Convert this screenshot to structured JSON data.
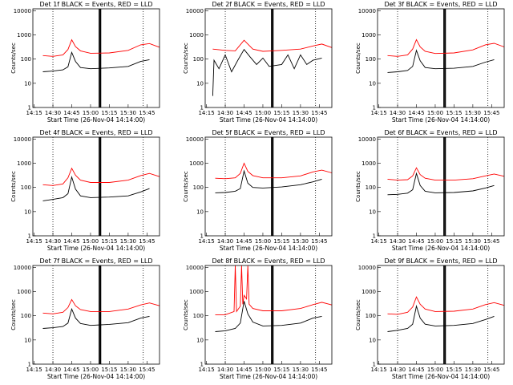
{
  "figure": {
    "xlabel": "Start Time (26-Nov-04 14:14:00)",
    "ylabel": "Counts/sec",
    "xticks": [
      "14:15",
      "14:30",
      "14:45",
      "15:00",
      "15:15",
      "15:30",
      "15:45"
    ],
    "yticks": [
      "1",
      "10",
      "100",
      "1000",
      "10000"
    ],
    "colors": {
      "events": "#000000",
      "lld": "#ff0000"
    }
  },
  "chart_data": [
    {
      "type": "line",
      "title": "Det 1f BLACK = Events, RED = LLD",
      "xlabel": "Start Time (26-Nov-04 14:14:00)",
      "ylabel": "Counts/sec",
      "ylog": true,
      "xlim": [
        "14:14",
        "15:55"
      ],
      "ylim": [
        1,
        12000
      ],
      "markers": [
        "14:30",
        "15:07",
        "15:08",
        "15:42"
      ],
      "series": [
        {
          "name": "Events",
          "color": "#000000",
          "x": [
            "14:22",
            "14:30",
            "14:38",
            "14:42",
            "14:45",
            "14:48",
            "14:52",
            "15:00",
            "15:15",
            "15:30",
            "15:40",
            "15:47"
          ],
          "values": [
            30,
            32,
            36,
            48,
            190,
            80,
            45,
            40,
            43,
            50,
            80,
            95
          ]
        },
        {
          "name": "LLD",
          "color": "#ff0000",
          "x": [
            "14:22",
            "14:30",
            "14:38",
            "14:42",
            "14:45",
            "14:48",
            "14:52",
            "15:00",
            "15:15",
            "15:30",
            "15:40",
            "15:47",
            "15:55"
          ],
          "values": [
            140,
            130,
            150,
            250,
            630,
            330,
            220,
            175,
            180,
            230,
            390,
            440,
            310
          ]
        }
      ]
    },
    {
      "type": "line",
      "title": "Det 2f BLACK = Events, RED = LLD",
      "xlabel": "Start Time (26-Nov-04 14:14:00)",
      "ylabel": "Counts/sec",
      "ylog": true,
      "xlim": [
        "14:14",
        "15:55"
      ],
      "ylim": [
        1,
        12000
      ],
      "markers": [
        "14:30",
        "15:07",
        "15:08",
        "15:42"
      ],
      "series": [
        {
          "name": "Events",
          "color": "#000000",
          "x": [
            "14:20",
            "14:21",
            "14:25",
            "14:30",
            "14:35",
            "14:40",
            "14:45",
            "14:50",
            "14:55",
            "15:00",
            "15:05",
            "15:15",
            "15:20",
            "15:25",
            "15:30",
            "15:35",
            "15:40",
            "15:47"
          ],
          "values": [
            3,
            90,
            40,
            150,
            30,
            90,
            250,
            120,
            60,
            110,
            50,
            60,
            150,
            40,
            150,
            60,
            90,
            110
          ]
        },
        {
          "name": "LLD",
          "color": "#ff0000",
          "x": [
            "14:20",
            "14:30",
            "14:38",
            "14:45",
            "14:52",
            "15:00",
            "15:15",
            "15:30",
            "15:40",
            "15:47",
            "15:55"
          ],
          "values": [
            260,
            230,
            220,
            600,
            260,
            210,
            230,
            260,
            350,
            420,
            300
          ]
        }
      ]
    },
    {
      "type": "line",
      "title": "Det 3f BLACK = Events, RED = LLD",
      "xlabel": "Start Time (26-Nov-04 14:14:00)",
      "ylabel": "Counts/sec",
      "ylog": true,
      "xlim": [
        "14:14",
        "15:55"
      ],
      "ylim": [
        1,
        12000
      ],
      "markers": [
        "14:30",
        "15:07",
        "15:08",
        "15:42"
      ],
      "series": [
        {
          "name": "Events",
          "color": "#000000",
          "x": [
            "14:22",
            "14:30",
            "14:38",
            "14:42",
            "14:45",
            "14:48",
            "14:52",
            "15:00",
            "15:15",
            "15:30",
            "15:40",
            "15:47"
          ],
          "values": [
            28,
            30,
            34,
            50,
            230,
            85,
            45,
            40,
            42,
            50,
            75,
            95
          ]
        },
        {
          "name": "LLD",
          "color": "#ff0000",
          "x": [
            "14:22",
            "14:30",
            "14:38",
            "14:42",
            "14:45",
            "14:48",
            "14:52",
            "15:00",
            "15:15",
            "15:30",
            "15:40",
            "15:47",
            "15:55"
          ],
          "values": [
            140,
            130,
            150,
            260,
            640,
            320,
            210,
            170,
            180,
            240,
            390,
            450,
            320
          ]
        }
      ]
    },
    {
      "type": "line",
      "title": "Det 4f BLACK = Events, RED = LLD",
      "xlabel": "Start Time (26-Nov-04 14:14:00)",
      "ylabel": "Counts/sec",
      "ylog": true,
      "xlim": [
        "14:14",
        "15:55"
      ],
      "ylim": [
        1,
        12000
      ],
      "markers": [
        "14:30",
        "15:07",
        "15:08",
        "15:42"
      ],
      "series": [
        {
          "name": "Events",
          "color": "#000000",
          "x": [
            "14:22",
            "14:30",
            "14:38",
            "14:42",
            "14:45",
            "14:48",
            "14:52",
            "15:00",
            "15:15",
            "15:30",
            "15:40",
            "15:47"
          ],
          "values": [
            28,
            32,
            38,
            55,
            270,
            85,
            45,
            38,
            40,
            45,
            65,
            90
          ]
        },
        {
          "name": "LLD",
          "color": "#ff0000",
          "x": [
            "14:22",
            "14:30",
            "14:38",
            "14:42",
            "14:45",
            "14:48",
            "14:52",
            "15:00",
            "15:15",
            "15:30",
            "15:40",
            "15:47",
            "15:55"
          ],
          "values": [
            130,
            120,
            140,
            250,
            620,
            320,
            200,
            160,
            160,
            200,
            310,
            380,
            280
          ]
        }
      ]
    },
    {
      "type": "line",
      "title": "Det 5f BLACK = Events, RED = LLD",
      "xlabel": "Start Time (26-Nov-04 14:14:00)",
      "ylabel": "Counts/sec",
      "ylog": true,
      "xlim": [
        "14:14",
        "15:55"
      ],
      "ylim": [
        1,
        12000
      ],
      "markers": [
        "14:30",
        "15:07",
        "15:08",
        "15:42"
      ],
      "series": [
        {
          "name": "Events",
          "color": "#000000",
          "x": [
            "14:22",
            "14:30",
            "14:38",
            "14:42",
            "14:45",
            "14:48",
            "14:52",
            "15:00",
            "15:15",
            "15:30",
            "15:40",
            "15:47"
          ],
          "values": [
            60,
            62,
            70,
            90,
            480,
            150,
            100,
            95,
            105,
            130,
            170,
            220
          ]
        },
        {
          "name": "LLD",
          "color": "#ff0000",
          "x": [
            "14:22",
            "14:30",
            "14:38",
            "14:42",
            "14:45",
            "14:48",
            "14:52",
            "15:00",
            "15:15",
            "15:30",
            "15:40",
            "15:47",
            "15:55"
          ],
          "values": [
            240,
            230,
            250,
            380,
            1000,
            460,
            310,
            250,
            250,
            300,
            440,
            520,
            400
          ]
        }
      ]
    },
    {
      "type": "line",
      "title": "Det 6f BLACK = Events, RED = LLD",
      "xlabel": "Start Time (26-Nov-04 14:14:00)",
      "ylabel": "Counts/sec",
      "ylog": true,
      "xlim": [
        "14:14",
        "15:55"
      ],
      "ylim": [
        1,
        12000
      ],
      "markers": [
        "14:30",
        "15:07",
        "15:08",
        "15:42"
      ],
      "series": [
        {
          "name": "Events",
          "color": "#000000",
          "x": [
            "14:22",
            "14:30",
            "14:38",
            "14:42",
            "14:45",
            "14:48",
            "14:52",
            "15:00",
            "15:15",
            "15:30",
            "15:40",
            "15:47"
          ],
          "values": [
            50,
            52,
            58,
            80,
            380,
            120,
            70,
            60,
            62,
            72,
            95,
            120
          ]
        },
        {
          "name": "LLD",
          "color": "#ff0000",
          "x": [
            "14:22",
            "14:30",
            "14:38",
            "14:42",
            "14:45",
            "14:48",
            "14:52",
            "15:00",
            "15:15",
            "15:30",
            "15:40",
            "15:47",
            "15:55"
          ],
          "values": [
            220,
            200,
            210,
            300,
            650,
            340,
            240,
            200,
            200,
            230,
            300,
            360,
            290
          ]
        }
      ]
    },
    {
      "type": "line",
      "title": "Det 7f BLACK = Events, RED = LLD",
      "xlabel": "Start Time (26-Nov-04 14:14:00)",
      "ylabel": "Counts/sec",
      "ylog": true,
      "xlim": [
        "14:14",
        "15:55"
      ],
      "ylim": [
        1,
        12000
      ],
      "markers": [
        "14:30",
        "15:07",
        "15:08",
        "15:42"
      ],
      "series": [
        {
          "name": "Events",
          "color": "#000000",
          "x": [
            "14:22",
            "14:30",
            "14:38",
            "14:42",
            "14:45",
            "14:48",
            "14:52",
            "15:00",
            "15:15",
            "15:30",
            "15:40",
            "15:47"
          ],
          "values": [
            30,
            32,
            36,
            50,
            190,
            80,
            48,
            40,
            44,
            52,
            80,
            95
          ]
        },
        {
          "name": "LLD",
          "color": "#ff0000",
          "x": [
            "14:22",
            "14:30",
            "14:38",
            "14:42",
            "14:45",
            "14:48",
            "14:52",
            "15:00",
            "15:15",
            "15:30",
            "15:40",
            "15:47",
            "15:55"
          ],
          "values": [
            130,
            120,
            140,
            220,
            470,
            260,
            180,
            150,
            150,
            190,
            280,
            340,
            260
          ]
        }
      ]
    },
    {
      "type": "line",
      "title": "Det 8f BLACK = Events, RED = LLD",
      "xlabel": "Start Time (26-Nov-04 14:14:00)",
      "ylabel": "Counts/sec",
      "ylog": true,
      "xlim": [
        "14:14",
        "15:55"
      ],
      "ylim": [
        1,
        12000
      ],
      "markers": [
        "14:30",
        "15:07",
        "15:08",
        "15:42"
      ],
      "series": [
        {
          "name": "Events",
          "color": "#000000",
          "x": [
            "14:22",
            "14:30",
            "14:38",
            "14:42",
            "14:45",
            "14:48",
            "14:52",
            "15:00",
            "15:15",
            "15:30",
            "15:40",
            "15:47"
          ],
          "values": [
            22,
            24,
            30,
            50,
            400,
            120,
            55,
            38,
            40,
            50,
            80,
            95
          ]
        },
        {
          "name": "LLD",
          "color": "#ff0000",
          "x": [
            "14:22",
            "14:30",
            "14:37",
            "14:38",
            "14:39",
            "14:42",
            "14:43",
            "14:44",
            "14:45",
            "14:47",
            "14:48",
            "14:49",
            "14:52",
            "15:00",
            "15:15",
            "15:30",
            "15:40",
            "15:47",
            "15:55"
          ],
          "values": [
            110,
            110,
            150,
            12000,
            150,
            250,
            12000,
            300,
            700,
            500,
            12000,
            300,
            200,
            160,
            160,
            200,
            290,
            360,
            280
          ]
        }
      ]
    },
    {
      "type": "line",
      "title": "Det 9f BLACK = Events, RED = LLD",
      "xlabel": "Start Time (26-Nov-04 14:14:00)",
      "ylabel": "Counts/sec",
      "ylog": true,
      "xlim": [
        "14:14",
        "15:55"
      ],
      "ylim": [
        1,
        12000
      ],
      "markers": [
        "14:30",
        "15:07",
        "15:08",
        "15:42"
      ],
      "series": [
        {
          "name": "Events",
          "color": "#000000",
          "x": [
            "14:22",
            "14:30",
            "14:38",
            "14:42",
            "14:45",
            "14:48",
            "14:52",
            "15:00",
            "15:15",
            "15:30",
            "15:40",
            "15:47"
          ],
          "values": [
            22,
            25,
            30,
            45,
            250,
            80,
            45,
            38,
            40,
            48,
            70,
            95
          ]
        },
        {
          "name": "LLD",
          "color": "#ff0000",
          "x": [
            "14:22",
            "14:30",
            "14:38",
            "14:42",
            "14:45",
            "14:48",
            "14:52",
            "15:00",
            "15:15",
            "15:30",
            "15:40",
            "15:47",
            "15:55"
          ],
          "values": [
            120,
            115,
            140,
            230,
            600,
            300,
            190,
            150,
            155,
            190,
            290,
            350,
            270
          ]
        }
      ]
    }
  ]
}
